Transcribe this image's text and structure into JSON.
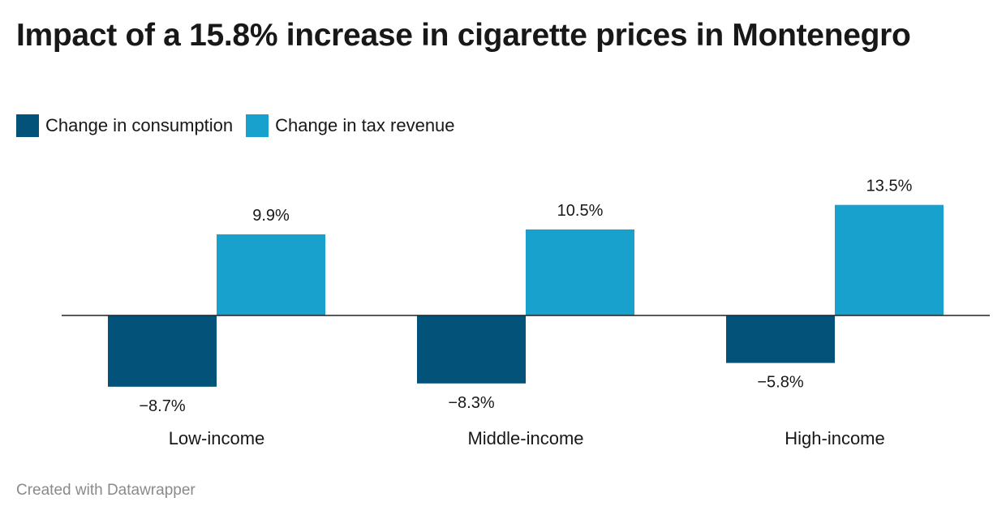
{
  "title": "Impact of a 15.8% increase in cigarette prices in Montenegro",
  "legend": {
    "items": [
      {
        "label": "Change in consumption",
        "color": "#03527a"
      },
      {
        "label": "Change in tax revenue",
        "color": "#18a1cd"
      }
    ]
  },
  "footer": "Created with Datawrapper",
  "chart_data": {
    "type": "bar",
    "categories": [
      "Low-income",
      "Middle-income",
      "High-income"
    ],
    "series": [
      {
        "name": "Change in consumption",
        "values": [
          -8.7,
          -8.3,
          -5.8
        ],
        "labels": [
          "−8.7%",
          "−8.3%",
          "−5.8%"
        ],
        "color": "#03527a"
      },
      {
        "name": "Change in tax revenue",
        "values": [
          9.9,
          10.5,
          13.5
        ],
        "labels": [
          "9.9%",
          "10.5%",
          "13.5%"
        ],
        "color": "#18a1cd"
      }
    ],
    "title": "Impact of a 15.8% increase in cigarette prices in Montenegro",
    "xlabel": "",
    "ylabel": "",
    "grid": false,
    "legend_position": "top-left",
    "value_labels": true
  }
}
